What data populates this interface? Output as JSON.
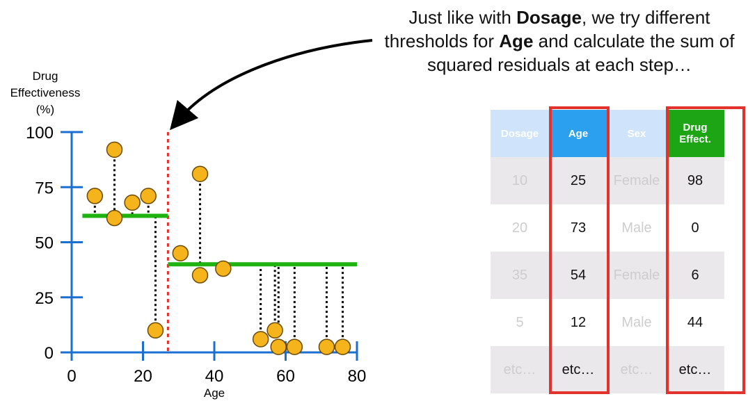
{
  "caption": {
    "part1": "Just like with ",
    "bold1": "Dosage",
    "part2": ", we try different thresholds for ",
    "bold2": "Age",
    "part3": " and calculate the sum of squared residuals at each step…"
  },
  "chart": {
    "ylabel_lines": [
      "Drug",
      "Effectiveness",
      "(%)"
    ],
    "xlabel": "Age",
    "x_ticks": [
      "0",
      "20",
      "40",
      "60",
      "80"
    ],
    "y_ticks": [
      "0",
      "25",
      "50",
      "75",
      "100"
    ],
    "axis_color": "#1a6fd1",
    "point_color": "#f5b41c",
    "split_line_color": "#1fb312",
    "threshold_color": "#e3322b"
  },
  "chart_data": {
    "type": "scatter",
    "xlabel": "Age",
    "ylabel": "Drug Effectiveness (%)",
    "xlim": [
      0,
      80
    ],
    "ylim": [
      0,
      100
    ],
    "points": [
      {
        "x": 6.5,
        "y": 71
      },
      {
        "x": 12,
        "y": 92
      },
      {
        "x": 12,
        "y": 61
      },
      {
        "x": 17,
        "y": 68
      },
      {
        "x": 21.5,
        "y": 71
      },
      {
        "x": 23.5,
        "y": 10
      },
      {
        "x": 30.5,
        "y": 45
      },
      {
        "x": 36,
        "y": 81
      },
      {
        "x": 36,
        "y": 35
      },
      {
        "x": 42.5,
        "y": 38
      },
      {
        "x": 53,
        "y": 6
      },
      {
        "x": 57,
        "y": 10
      },
      {
        "x": 58,
        "y": 2.5
      },
      {
        "x": 62.5,
        "y": 2.5
      },
      {
        "x": 71.5,
        "y": 2.5
      },
      {
        "x": 76,
        "y": 2.5
      }
    ],
    "threshold_x": 27,
    "segments": [
      {
        "x_start": 3,
        "x_end": 27,
        "y": 62
      },
      {
        "x_start": 27,
        "x_end": 80,
        "y": 40
      }
    ]
  },
  "table": {
    "headers": [
      "Dosage",
      "Age",
      "Sex",
      "Drug Effect."
    ],
    "rows": [
      [
        "10",
        "25",
        "Female",
        "98"
      ],
      [
        "20",
        "73",
        "Male",
        "0"
      ],
      [
        "35",
        "54",
        "Female",
        "6"
      ],
      [
        "5",
        "12",
        "Male",
        "44"
      ],
      [
        "etc…",
        "etc…",
        "etc…",
        "etc…"
      ]
    ]
  }
}
